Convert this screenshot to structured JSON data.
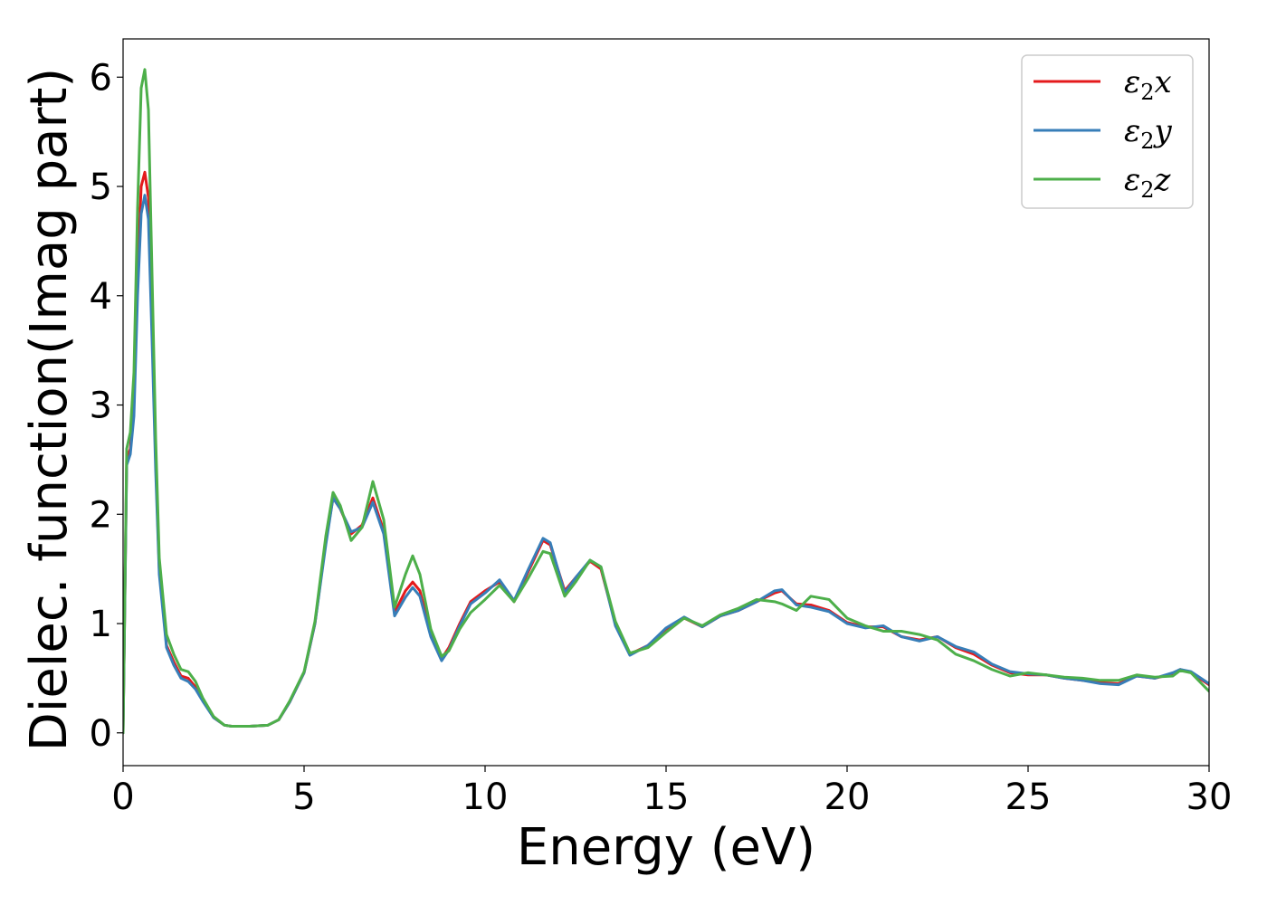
{
  "chart_data": {
    "type": "line",
    "title": "",
    "xlabel": "Energy (eV)",
    "ylabel": "Dielec. function(Imag part)",
    "xlim": [
      0,
      30
    ],
    "ylim": [
      -0.3,
      6.35
    ],
    "xticks": [
      0,
      5,
      10,
      15,
      20,
      25,
      30
    ],
    "yticks": [
      0,
      1,
      2,
      3,
      4,
      5,
      6
    ],
    "grid": false,
    "legend_position": "top-right",
    "series": [
      {
        "name": "ε₂x",
        "legend_base": "ε",
        "legend_sub": "2",
        "legend_var": "x",
        "color": "#e41a1c",
        "x": [
          0,
          0.1,
          0.2,
          0.3,
          0.4,
          0.5,
          0.6,
          0.7,
          0.8,
          0.9,
          1.0,
          1.2,
          1.4,
          1.6,
          1.8,
          2.0,
          2.2,
          2.5,
          2.8,
          3.0,
          3.5,
          4.0,
          4.3,
          4.6,
          5.0,
          5.3,
          5.6,
          5.8,
          6.0,
          6.3,
          6.6,
          6.9,
          7.2,
          7.5,
          7.8,
          8.0,
          8.2,
          8.5,
          8.8,
          9.0,
          9.3,
          9.6,
          10.0,
          10.4,
          10.8,
          11.2,
          11.6,
          11.8,
          12.2,
          12.5,
          12.9,
          13.2,
          13.6,
          14.0,
          14.5,
          15.0,
          15.5,
          16.0,
          16.5,
          17.0,
          17.5,
          18.0,
          18.2,
          18.6,
          19.0,
          19.5,
          20.0,
          20.5,
          21.0,
          21.5,
          22.0,
          22.5,
          23.0,
          23.5,
          24.0,
          24.5,
          25.0,
          25.5,
          26.0,
          26.5,
          27.0,
          27.5,
          28.0,
          28.5,
          29.0,
          29.2,
          29.5,
          30.0
        ],
        "values": [
          0,
          2.5,
          2.6,
          3.0,
          4.2,
          5.0,
          5.13,
          4.9,
          3.8,
          2.5,
          1.5,
          0.8,
          0.65,
          0.52,
          0.5,
          0.42,
          0.3,
          0.14,
          0.07,
          0.06,
          0.06,
          0.07,
          0.12,
          0.28,
          0.55,
          1.0,
          1.75,
          2.15,
          2.05,
          1.82,
          1.9,
          2.15,
          1.85,
          1.1,
          1.3,
          1.38,
          1.3,
          0.9,
          0.68,
          0.78,
          1.0,
          1.2,
          1.3,
          1.38,
          1.2,
          1.48,
          1.76,
          1.72,
          1.3,
          1.42,
          1.57,
          1.5,
          1.0,
          0.72,
          0.8,
          0.95,
          1.05,
          0.97,
          1.07,
          1.12,
          1.2,
          1.28,
          1.3,
          1.18,
          1.17,
          1.12,
          1.01,
          0.97,
          0.97,
          0.88,
          0.85,
          0.88,
          0.78,
          0.72,
          0.62,
          0.55,
          0.53,
          0.53,
          0.5,
          0.48,
          0.46,
          0.45,
          0.52,
          0.5,
          0.54,
          0.58,
          0.55,
          0.44
        ]
      },
      {
        "name": "ε₂y",
        "legend_base": "ε",
        "legend_sub": "2",
        "legend_var": "y",
        "color": "#377eb8",
        "x": [
          0,
          0.1,
          0.2,
          0.3,
          0.4,
          0.5,
          0.6,
          0.7,
          0.8,
          0.9,
          1.0,
          1.2,
          1.4,
          1.6,
          1.8,
          2.0,
          2.2,
          2.5,
          2.8,
          3.0,
          3.5,
          4.0,
          4.3,
          4.6,
          5.0,
          5.3,
          5.6,
          5.8,
          6.0,
          6.3,
          6.6,
          6.9,
          7.2,
          7.5,
          7.8,
          8.0,
          8.2,
          8.5,
          8.8,
          9.0,
          9.3,
          9.6,
          10.0,
          10.4,
          10.8,
          11.2,
          11.6,
          11.8,
          12.2,
          12.5,
          12.9,
          13.2,
          13.6,
          14.0,
          14.5,
          15.0,
          15.5,
          16.0,
          16.5,
          17.0,
          17.5,
          18.0,
          18.2,
          18.6,
          19.0,
          19.5,
          20.0,
          20.5,
          21.0,
          21.5,
          22.0,
          22.5,
          23.0,
          23.5,
          24.0,
          24.5,
          25.0,
          25.5,
          26.0,
          26.5,
          27.0,
          27.5,
          28.0,
          28.5,
          29.0,
          29.2,
          29.5,
          30.0
        ],
        "values": [
          0,
          2.45,
          2.55,
          2.9,
          4.0,
          4.75,
          4.92,
          4.7,
          3.6,
          2.4,
          1.45,
          0.78,
          0.62,
          0.5,
          0.47,
          0.4,
          0.29,
          0.14,
          0.07,
          0.06,
          0.06,
          0.07,
          0.12,
          0.28,
          0.55,
          1.0,
          1.72,
          2.15,
          2.05,
          1.84,
          1.88,
          2.11,
          1.82,
          1.07,
          1.24,
          1.33,
          1.25,
          0.88,
          0.66,
          0.76,
          0.98,
          1.18,
          1.28,
          1.4,
          1.21,
          1.5,
          1.78,
          1.74,
          1.28,
          1.42,
          1.58,
          1.52,
          0.98,
          0.71,
          0.8,
          0.96,
          1.06,
          0.97,
          1.07,
          1.12,
          1.2,
          1.3,
          1.31,
          1.17,
          1.15,
          1.11,
          1.0,
          0.96,
          0.98,
          0.88,
          0.84,
          0.88,
          0.79,
          0.74,
          0.63,
          0.56,
          0.54,
          0.53,
          0.5,
          0.48,
          0.45,
          0.44,
          0.52,
          0.5,
          0.55,
          0.58,
          0.56,
          0.45
        ]
      },
      {
        "name": "ε₂z",
        "legend_base": "ε",
        "legend_sub": "2",
        "legend_var": "z",
        "color": "#4daf4a",
        "x": [
          0,
          0.1,
          0.2,
          0.3,
          0.4,
          0.5,
          0.6,
          0.7,
          0.8,
          0.9,
          1.0,
          1.2,
          1.4,
          1.6,
          1.8,
          2.0,
          2.2,
          2.5,
          2.8,
          3.0,
          3.5,
          4.0,
          4.3,
          4.6,
          5.0,
          5.3,
          5.6,
          5.8,
          6.0,
          6.3,
          6.6,
          6.9,
          7.2,
          7.5,
          7.8,
          8.0,
          8.2,
          8.5,
          8.8,
          9.0,
          9.3,
          9.6,
          10.0,
          10.4,
          10.8,
          11.2,
          11.6,
          11.8,
          12.2,
          12.5,
          12.9,
          13.2,
          13.6,
          14.0,
          14.5,
          15.0,
          15.5,
          16.0,
          16.5,
          17.0,
          17.5,
          18.0,
          18.2,
          18.6,
          19.0,
          19.5,
          20.0,
          20.5,
          21.0,
          21.5,
          22.0,
          22.5,
          23.0,
          23.5,
          24.0,
          24.5,
          25.0,
          25.5,
          26.0,
          26.5,
          27.0,
          27.5,
          28.0,
          28.5,
          29.0,
          29.2,
          29.5,
          30.0
        ],
        "values": [
          0,
          2.6,
          2.75,
          3.3,
          4.8,
          5.9,
          6.07,
          5.7,
          4.2,
          2.7,
          1.6,
          0.9,
          0.72,
          0.58,
          0.56,
          0.47,
          0.32,
          0.15,
          0.07,
          0.06,
          0.06,
          0.07,
          0.12,
          0.29,
          0.56,
          1.02,
          1.8,
          2.2,
          2.08,
          1.76,
          1.88,
          2.3,
          1.95,
          1.15,
          1.45,
          1.62,
          1.45,
          0.95,
          0.7,
          0.75,
          0.95,
          1.1,
          1.22,
          1.35,
          1.2,
          1.42,
          1.66,
          1.64,
          1.25,
          1.38,
          1.58,
          1.52,
          1.02,
          0.73,
          0.78,
          0.92,
          1.05,
          0.98,
          1.08,
          1.14,
          1.22,
          1.2,
          1.18,
          1.12,
          1.25,
          1.22,
          1.05,
          0.98,
          0.93,
          0.93,
          0.9,
          0.85,
          0.72,
          0.66,
          0.58,
          0.52,
          0.55,
          0.53,
          0.51,
          0.5,
          0.48,
          0.48,
          0.53,
          0.51,
          0.52,
          0.57,
          0.55,
          0.38
        ]
      }
    ]
  }
}
